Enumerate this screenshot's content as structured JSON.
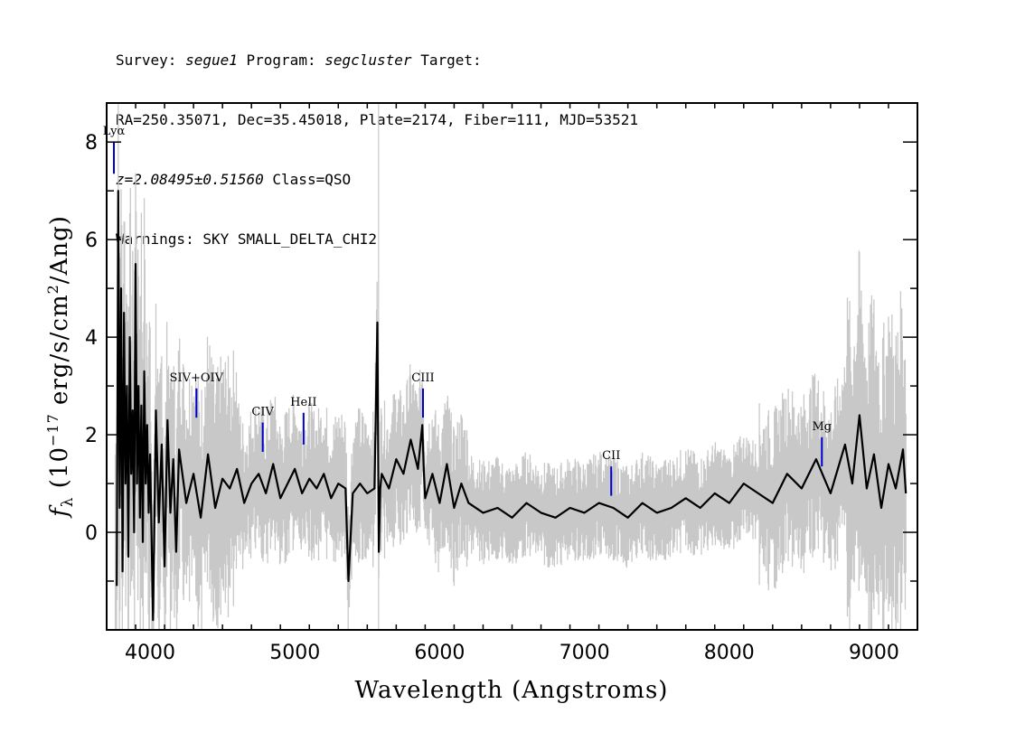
{
  "header": {
    "survey_label": "Survey:",
    "survey": "segue1",
    "program_label": "Program:",
    "program": "segcluster",
    "target_label": "Target:",
    "line2": "RA=250.35071, Dec=35.45018, Plate=2174, Fiber=111, MJD=53521",
    "redshift": "z=2.08495±0.51560",
    "class_text": "Class=QSO",
    "warnings": "Warnings: SKY SMALL_DELTA_CHI2"
  },
  "chart_data": {
    "type": "line",
    "xlabel": "Wavelength (Angstroms)",
    "ylabel_parts": {
      "f": "f",
      "lambda": "λ",
      "open": " (10",
      "exp1": "−17",
      "mid": " erg/s/cm",
      "exp2": "2",
      "close": "/Ang)"
    },
    "xlim": [
      3700,
      9300
    ],
    "ylim": [
      -2.0,
      8.8
    ],
    "x_ticks": [
      4000,
      5000,
      6000,
      7000,
      8000,
      9000
    ],
    "x_tick_labels": [
      "4000",
      "5000",
      "6000",
      "7000",
      "8000",
      "9000"
    ],
    "y_ticks": [
      0,
      2,
      4,
      6,
      8
    ],
    "y_tick_labels": [
      "0",
      "2",
      "4",
      "6",
      "8"
    ],
    "sky_line_x": 5578,
    "colors": {
      "flux": "#000000",
      "error": "#c8c8c8",
      "line_marker": "#0000cc"
    },
    "emission_lines": [
      {
        "label": "Lyα",
        "x": 3750,
        "y0": 7.35,
        "y1": 8.0
      },
      {
        "label": "SIV+OIV",
        "x": 4320,
        "y0": 2.35,
        "y1": 2.95
      },
      {
        "label": "CIV",
        "x": 4778,
        "y0": 1.65,
        "y1": 2.25
      },
      {
        "label": "HeII",
        "x": 5060,
        "y0": 1.8,
        "y1": 2.45
      },
      {
        "label": "CIII",
        "x": 5885,
        "y0": 2.35,
        "y1": 2.95
      },
      {
        "label": "CII",
        "x": 7185,
        "y0": 0.75,
        "y1": 1.35
      },
      {
        "label": "Mg",
        "x": 8640,
        "y0": 1.35,
        "y1": 1.95
      }
    ],
    "flux_series": {
      "name": "flux",
      "x": [
        3770,
        3780,
        3790,
        3800,
        3810,
        3820,
        3830,
        3840,
        3850,
        3860,
        3870,
        3880,
        3890,
        3900,
        3910,
        3920,
        3930,
        3940,
        3950,
        3960,
        3970,
        3980,
        3990,
        4000,
        4020,
        4040,
        4060,
        4080,
        4100,
        4120,
        4140,
        4160,
        4180,
        4200,
        4250,
        4300,
        4350,
        4400,
        4450,
        4500,
        4550,
        4600,
        4650,
        4700,
        4750,
        4800,
        4850,
        4900,
        4950,
        5000,
        5050,
        5100,
        5150,
        5200,
        5250,
        5300,
        5350,
        5370,
        5400,
        5450,
        5500,
        5550,
        5570,
        5580,
        5590,
        5600,
        5650,
        5700,
        5750,
        5800,
        5850,
        5880,
        5890,
        5900,
        5950,
        6000,
        6050,
        6100,
        6150,
        6200,
        6300,
        6400,
        6500,
        6600,
        6700,
        6800,
        6900,
        7000,
        7100,
        7200,
        7300,
        7400,
        7500,
        7600,
        7700,
        7800,
        7900,
        8000,
        8100,
        8200,
        8300,
        8400,
        8500,
        8600,
        8700,
        8800,
        8850,
        8900,
        8950,
        9000,
        9050,
        9100,
        9150,
        9200,
        9220
      ],
      "y": [
        -1.1,
        7.0,
        0.5,
        5.0,
        -0.8,
        4.5,
        1.0,
        3.0,
        -0.5,
        4.0,
        1.2,
        2.5,
        0.0,
        5.5,
        1.0,
        3.0,
        0.3,
        2.6,
        -0.2,
        3.3,
        1.0,
        2.2,
        0.4,
        1.6,
        -1.8,
        2.5,
        0.2,
        1.8,
        -0.7,
        2.3,
        0.4,
        1.5,
        -0.4,
        1.7,
        0.6,
        1.2,
        0.3,
        1.6,
        0.5,
        1.1,
        0.9,
        1.3,
        0.6,
        1.0,
        1.2,
        0.8,
        1.4,
        0.7,
        1.0,
        1.3,
        0.8,
        1.1,
        0.9,
        1.2,
        0.7,
        1.0,
        0.9,
        -1.0,
        0.8,
        1.0,
        0.8,
        0.9,
        4.3,
        -0.4,
        0.9,
        1.2,
        0.9,
        1.5,
        1.2,
        1.9,
        1.3,
        2.2,
        1.3,
        0.7,
        1.2,
        0.6,
        1.4,
        0.5,
        1.0,
        0.6,
        0.4,
        0.5,
        0.3,
        0.6,
        0.4,
        0.3,
        0.5,
        0.4,
        0.6,
        0.5,
        0.3,
        0.6,
        0.4,
        0.5,
        0.7,
        0.5,
        0.8,
        0.6,
        1.0,
        0.8,
        0.6,
        1.2,
        0.9,
        1.5,
        0.8,
        1.8,
        1.0,
        2.4,
        0.9,
        1.6,
        0.5,
        1.4,
        0.9,
        1.7,
        0.8
      ]
    }
  }
}
